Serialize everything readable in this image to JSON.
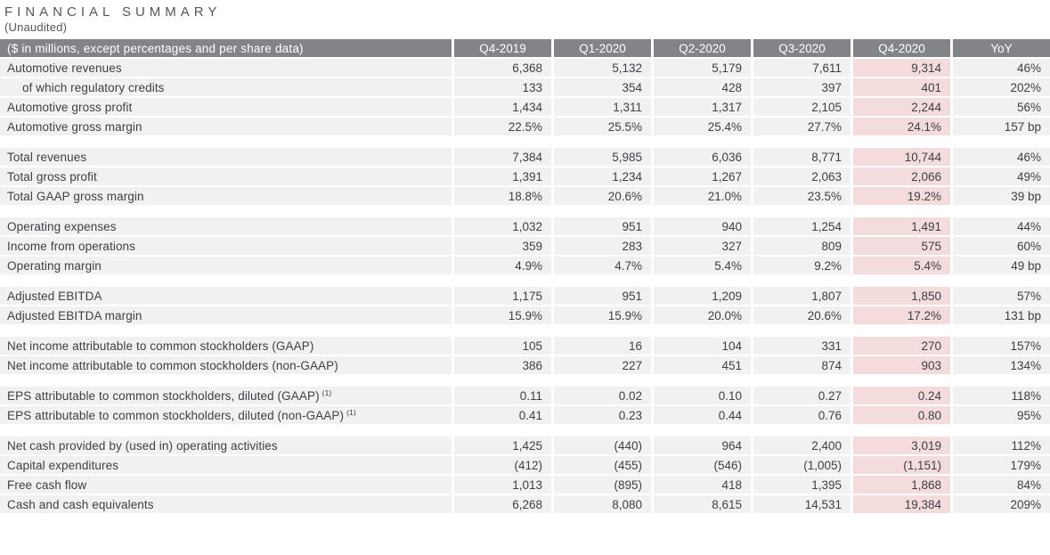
{
  "page": {
    "title": "FINANCIAL SUMMARY",
    "subtitle": "(Unaudited)"
  },
  "colors": {
    "header_bg": "#838487",
    "header_text": "#ffffff",
    "row_bg": "#f1f1f2",
    "highlight_bg": "#f3dcdb",
    "text": "#3f4045",
    "title_text": "#55565b",
    "page_bg": "#ffffff"
  },
  "table": {
    "label_header": "($ in millions, except percentages and per share data)",
    "columns": [
      "Q4-2019",
      "Q1-2020",
      "Q2-2020",
      "Q3-2020",
      "Q4-2020",
      "YoY"
    ],
    "highlight_column": "Q4-2020",
    "sections": [
      {
        "rows": [
          {
            "label": "Automotive revenues",
            "indent": false,
            "sup": "",
            "values": [
              "6,368",
              "5,132",
              "5,179",
              "7,611",
              "9,314",
              "46%"
            ]
          },
          {
            "label": "of which regulatory credits",
            "indent": true,
            "sup": "",
            "values": [
              "133",
              "354",
              "428",
              "397",
              "401",
              "202%"
            ]
          },
          {
            "label": "Automotive gross profit",
            "indent": false,
            "sup": "",
            "values": [
              "1,434",
              "1,311",
              "1,317",
              "2,105",
              "2,244",
              "56%"
            ]
          },
          {
            "label": "Automotive gross margin",
            "indent": false,
            "sup": "",
            "values": [
              "22.5%",
              "25.5%",
              "25.4%",
              "27.7%",
              "24.1%",
              "157 bp"
            ]
          }
        ]
      },
      {
        "rows": [
          {
            "label": "Total revenues",
            "indent": false,
            "sup": "",
            "values": [
              "7,384",
              "5,985",
              "6,036",
              "8,771",
              "10,744",
              "46%"
            ]
          },
          {
            "label": "Total gross profit",
            "indent": false,
            "sup": "",
            "values": [
              "1,391",
              "1,234",
              "1,267",
              "2,063",
              "2,066",
              "49%"
            ]
          },
          {
            "label": "Total GAAP gross margin",
            "indent": false,
            "sup": "",
            "values": [
              "18.8%",
              "20.6%",
              "21.0%",
              "23.5%",
              "19.2%",
              "39 bp"
            ]
          }
        ]
      },
      {
        "rows": [
          {
            "label": "Operating expenses",
            "indent": false,
            "sup": "",
            "values": [
              "1,032",
              "951",
              "940",
              "1,254",
              "1,491",
              "44%"
            ]
          },
          {
            "label": "Income from operations",
            "indent": false,
            "sup": "",
            "values": [
              "359",
              "283",
              "327",
              "809",
              "575",
              "60%"
            ]
          },
          {
            "label": "Operating margin",
            "indent": false,
            "sup": "",
            "values": [
              "4.9%",
              "4.7%",
              "5.4%",
              "9.2%",
              "5.4%",
              "49 bp"
            ]
          }
        ]
      },
      {
        "rows": [
          {
            "label": "Adjusted EBITDA",
            "indent": false,
            "sup": "",
            "values": [
              "1,175",
              "951",
              "1,209",
              "1,807",
              "1,850",
              "57%"
            ]
          },
          {
            "label": "Adjusted EBITDA margin",
            "indent": false,
            "sup": "",
            "values": [
              "15.9%",
              "15.9%",
              "20.0%",
              "20.6%",
              "17.2%",
              "131 bp"
            ]
          }
        ]
      },
      {
        "rows": [
          {
            "label": "Net income attributable to common stockholders (GAAP)",
            "indent": false,
            "sup": "",
            "values": [
              "105",
              "16",
              "104",
              "331",
              "270",
              "157%"
            ]
          },
          {
            "label": "Net income attributable to common stockholders (non-GAAP)",
            "indent": false,
            "sup": "",
            "values": [
              "386",
              "227",
              "451",
              "874",
              "903",
              "134%"
            ]
          }
        ]
      },
      {
        "rows": [
          {
            "label": "EPS attributable to common stockholders, diluted (GAAP)",
            "indent": false,
            "sup": "(1)",
            "values": [
              "0.11",
              "0.02",
              "0.10",
              "0.27",
              "0.24",
              "118%"
            ]
          },
          {
            "label": "EPS attributable to common stockholders, diluted (non-GAAP)",
            "indent": false,
            "sup": "(1)",
            "values": [
              "0.41",
              "0.23",
              "0.44",
              "0.76",
              "0.80",
              "95%"
            ]
          }
        ]
      },
      {
        "rows": [
          {
            "label": "Net cash provided by (used in) operating activities",
            "indent": false,
            "sup": "",
            "values": [
              "1,425",
              "(440)",
              "964",
              "2,400",
              "3,019",
              "112%"
            ]
          },
          {
            "label": "Capital expenditures",
            "indent": false,
            "sup": "",
            "values": [
              "(412)",
              "(455)",
              "(546)",
              "(1,005)",
              "(1,151)",
              "179%"
            ]
          },
          {
            "label": "Free cash flow",
            "indent": false,
            "sup": "",
            "values": [
              "1,013",
              "(895)",
              "418",
              "1,395",
              "1,868",
              "84%"
            ]
          },
          {
            "label": "Cash and cash equivalents",
            "indent": false,
            "sup": "",
            "values": [
              "6,268",
              "8,080",
              "8,615",
              "14,531",
              "19,384",
              "209%"
            ]
          }
        ]
      }
    ]
  }
}
